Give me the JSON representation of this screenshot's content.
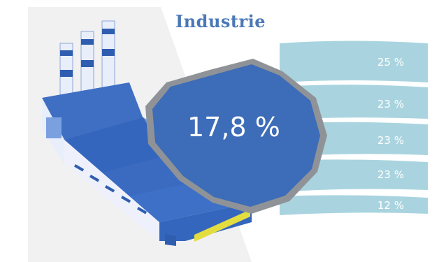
{
  "title": "Industrie",
  "main_value": "17,8 %",
  "bands": [
    {
      "label": "25 %",
      "value": 25
    },
    {
      "label": "23 %",
      "value": 23
    },
    {
      "label": "23 %",
      "value": 23
    },
    {
      "label": "23 %",
      "value": 23
    },
    {
      "label": "12 %",
      "value": 12
    }
  ],
  "colors": {
    "title": "#4a78b8",
    "circle": "#3d6cb8",
    "ring": "#8f9397",
    "band": "#a9d4df",
    "factory_dark": "#2f5db0",
    "factory_light": "#e9eefb",
    "accent_yellow": "#e3dd40"
  },
  "icons": {
    "factory": "factory-icon"
  }
}
